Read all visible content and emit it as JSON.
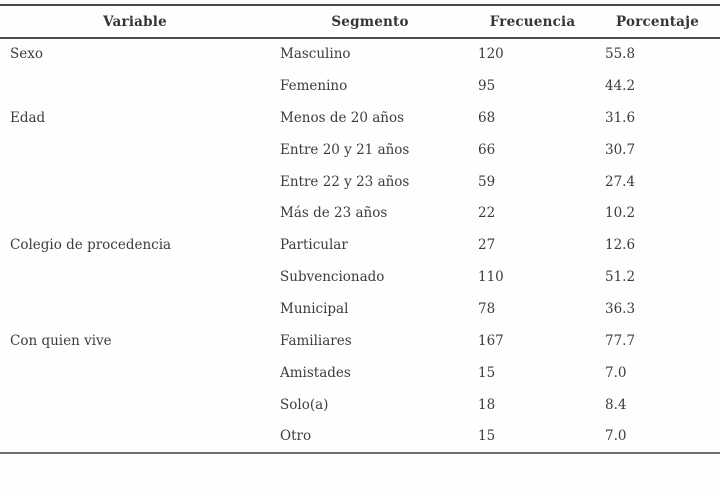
{
  "chart_data": {
    "type": "table",
    "columns": [
      "Variable",
      "Segmento",
      "Frecuencia",
      "Porcentaje"
    ],
    "groups": [
      {
        "variable": "Sexo",
        "rows": [
          [
            "Masculino",
            "120",
            "55.8"
          ],
          [
            "Femenino",
            "95",
            "44.2"
          ]
        ]
      },
      {
        "variable": "Edad",
        "rows": [
          [
            "Menos de 20 años",
            "68",
            "31.6"
          ],
          [
            "Entre 20 y 21 años",
            "66",
            "30.7"
          ],
          [
            "Entre 22 y 23 años",
            "59",
            "27.4"
          ],
          [
            "Más de 23 años",
            "22",
            "10.2"
          ]
        ]
      },
      {
        "variable": "Colegio de procedencia",
        "rows": [
          [
            "Particular",
            "27",
            "12.6"
          ],
          [
            "Subvencionado",
            "110",
            "51.2"
          ],
          [
            "Municipal",
            "78",
            "36.3"
          ]
        ]
      },
      {
        "variable": "Con quien vive",
        "rows": [
          [
            "Familiares",
            "167",
            "77.7"
          ],
          [
            "Amistades",
            "15",
            "7.0"
          ],
          [
            "Solo(a)",
            "18",
            "8.4"
          ],
          [
            "Otro",
            "15",
            "7.0"
          ]
        ]
      }
    ],
    "layout": {
      "rules": "horizontal only: top, below header, bottom",
      "header_alignment": "center",
      "body_alignment": "left"
    }
  },
  "colors": {
    "background": "#fefefe",
    "text": "#3c3c3c",
    "rule_dark": "#474747",
    "rule_light": "#6e6e6e"
  }
}
